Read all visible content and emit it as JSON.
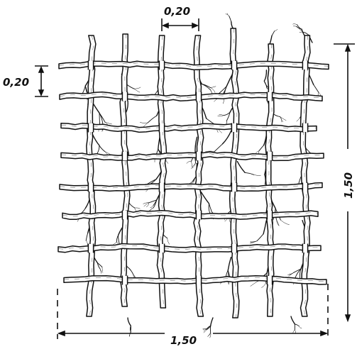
{
  "dimensions": {
    "top_spacing": "0,20",
    "left_spacing": "0,20",
    "right_height": "1,50",
    "bottom_width": "1,50"
  },
  "grid": {
    "horizontal_rods": 8,
    "vertical_rods": 7
  },
  "colors": {
    "ink": "#111111",
    "paper": "#ffffff"
  }
}
